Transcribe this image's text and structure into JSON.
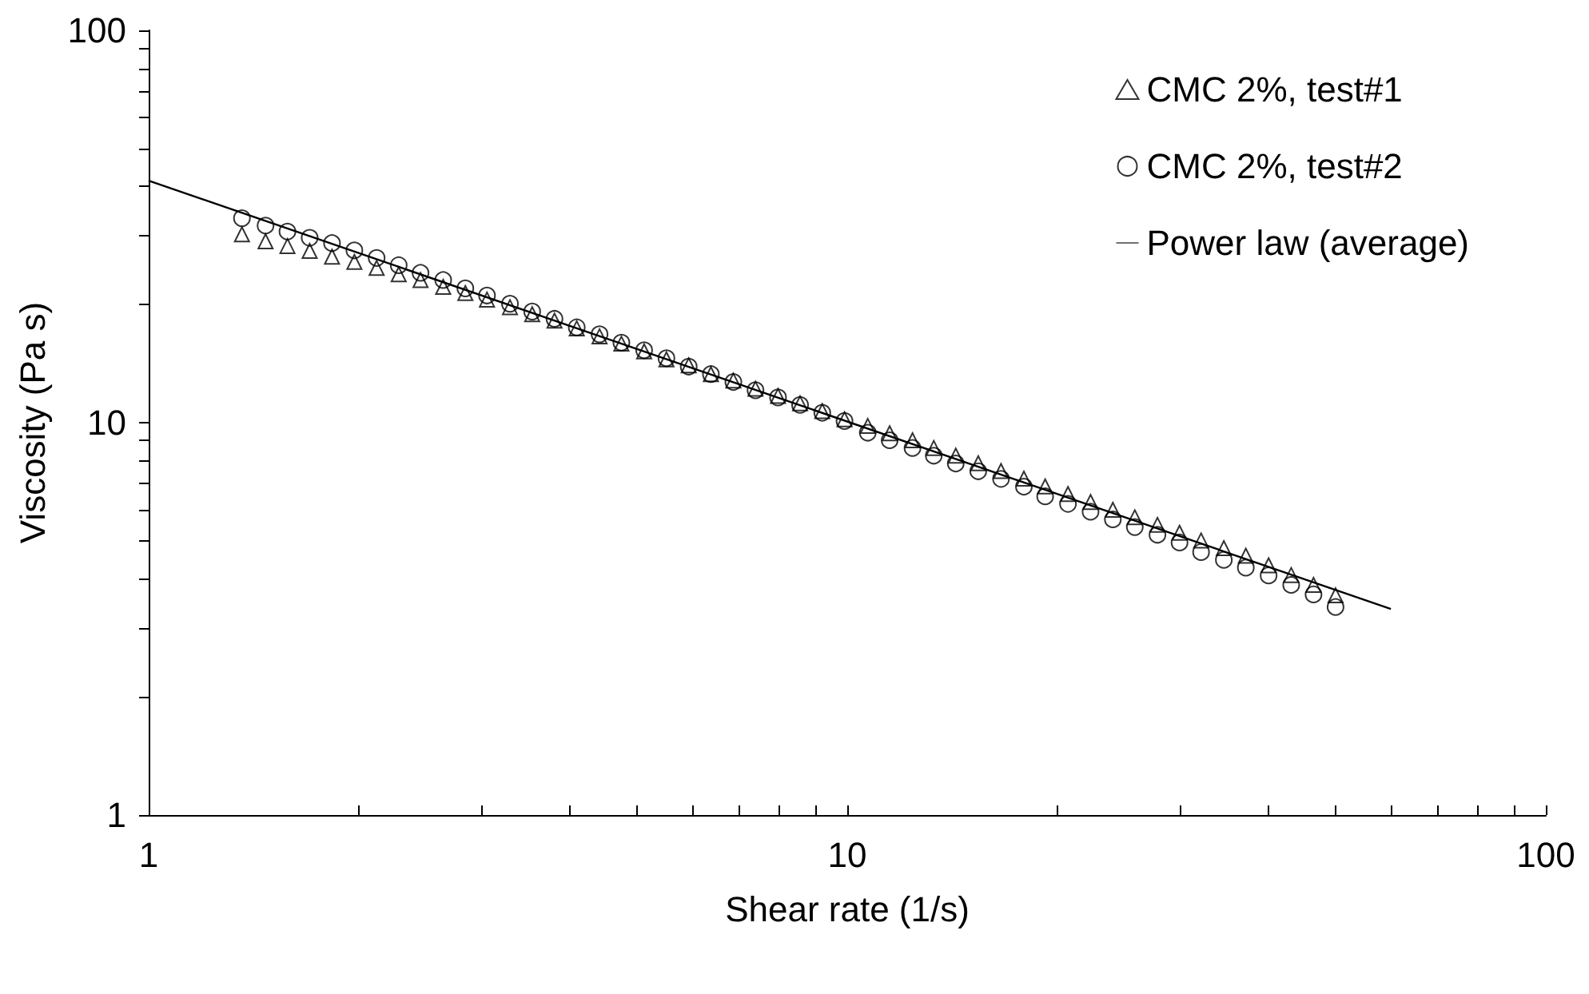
{
  "chart_data": {
    "type": "scatter",
    "xlabel": "Shear rate (1/s)",
    "ylabel": "Viscosity (Pa s)",
    "log": "xy",
    "grid": false,
    "legend": "top right",
    "xlim": [
      1,
      100
    ],
    "ylim": [
      1,
      100
    ],
    "xticks": [
      1,
      {
        "value": 2,
        "label": null
      },
      {
        "value": 3,
        "label": null
      },
      {
        "value": 4,
        "label": null
      },
      {
        "value": 5,
        "label": null
      },
      {
        "value": 6,
        "label": null
      },
      {
        "value": 7,
        "label": null
      },
      {
        "value": 8,
        "label": null
      },
      {
        "value": 9,
        "label": null
      },
      10,
      {
        "value": 20,
        "label": null
      },
      {
        "value": 30,
        "label": null
      },
      {
        "value": 40,
        "label": null
      },
      {
        "value": 50,
        "label": null
      },
      {
        "value": 60,
        "label": null
      },
      {
        "value": 70,
        "label": null
      },
      {
        "value": 80,
        "label": null
      },
      {
        "value": 90,
        "label": null
      },
      100
    ],
    "yticks": [
      1,
      {
        "value": 2,
        "label": null
      },
      {
        "value": 3,
        "label": null
      },
      {
        "value": 4,
        "label": null
      },
      {
        "value": 5,
        "label": null
      },
      {
        "value": 6,
        "label": null
      },
      {
        "value": 7,
        "label": null
      },
      {
        "value": 8,
        "label": null
      },
      {
        "value": 9,
        "label": null
      },
      10,
      {
        "value": 20,
        "label": null
      },
      {
        "value": 30,
        "label": null
      },
      {
        "value": 40,
        "label": null
      },
      {
        "value": 50,
        "label": null
      },
      {
        "value": 60,
        "label": null
      },
      {
        "value": 70,
        "label": null
      },
      {
        "value": 80,
        "label": null
      },
      {
        "value": 90,
        "label": null
      },
      100
    ],
    "x": [
      1.36,
      1.47,
      1.58,
      1.7,
      1.83,
      1.97,
      2.12,
      2.28,
      2.45,
      2.64,
      2.84,
      3.05,
      3.29,
      3.54,
      3.81,
      4.1,
      4.42,
      4.75,
      5.12,
      5.51,
      5.93,
      6.38,
      6.87,
      7.39,
      7.96,
      8.56,
      9.21,
      9.91,
      10.7,
      11.5,
      12.4,
      13.3,
      14.3,
      15.4,
      16.6,
      17.9,
      19.2,
      20.7,
      22.3,
      24.0,
      25.8,
      27.8,
      29.9,
      32.1,
      34.6,
      37.2,
      40.1,
      43.2,
      46.5,
      50.0
    ],
    "series": [
      {
        "name": "CMC 2%, test#1",
        "marker": "triangle",
        "color": "#000000",
        "values": [
          30.2,
          29.0,
          28.2,
          27.4,
          26.5,
          25.7,
          24.8,
          23.9,
          23.1,
          22.2,
          21.4,
          20.6,
          19.7,
          18.9,
          18.2,
          17.4,
          16.6,
          15.9,
          15.2,
          14.5,
          14.0,
          13.3,
          12.8,
          12.2,
          11.7,
          11.2,
          10.7,
          10.2,
          9.81,
          9.4,
          9.02,
          8.62,
          8.24,
          7.88,
          7.53,
          7.2,
          6.88,
          6.58,
          6.28,
          6.0,
          5.74,
          5.49,
          5.24,
          5.01,
          4.79,
          4.58,
          4.33,
          4.09,
          3.86,
          3.63
        ]
      },
      {
        "name": "CMC 2%, test#2",
        "marker": "circle",
        "color": "#000000",
        "values": [
          33.2,
          31.8,
          30.7,
          29.6,
          28.7,
          27.5,
          26.3,
          25.2,
          24.1,
          23.1,
          22.0,
          21.1,
          20.1,
          19.2,
          18.4,
          17.5,
          16.8,
          16.0,
          15.3,
          14.6,
          13.9,
          13.3,
          12.7,
          12.1,
          11.6,
          11.1,
          10.6,
          10.1,
          9.43,
          9.02,
          8.62,
          8.24,
          7.87,
          7.52,
          7.19,
          6.87,
          6.49,
          6.21,
          5.93,
          5.67,
          5.42,
          5.18,
          4.95,
          4.68,
          4.47,
          4.27,
          4.08,
          3.86,
          3.65,
          3.39
        ]
      },
      {
        "name": "Power law (average)",
        "type": "line",
        "marker": "none",
        "line_style": "solid",
        "color": "#000000",
        "x": [
          1,
          60
        ],
        "values": [
          41.4,
          3.35
        ]
      }
    ]
  }
}
